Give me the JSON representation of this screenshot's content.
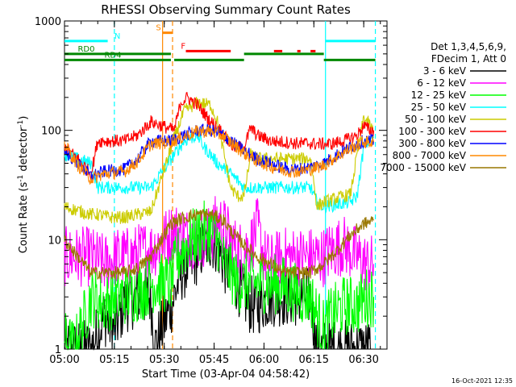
{
  "chart_data": {
    "type": "line",
    "title": "RHESSI Observing Summary Count Rates",
    "xlabel": "Start Time (03-Apr-04 04:58:42)",
    "ylabel_main": "Count Rate (s",
    "ylabel_sup1": "-1",
    "ylabel_mid": " detector",
    "ylabel_sup2": "-1",
    "ylabel_end": ")",
    "yscale": "log",
    "ylim": [
      1,
      1000
    ],
    "xlim_minutes": [
      0,
      97
    ],
    "xticks": [
      {
        "t": 0,
        "label": "05:00"
      },
      {
        "t": 15,
        "label": "05:15"
      },
      {
        "t": 30,
        "label": "05:30"
      },
      {
        "t": 45,
        "label": "05:45"
      },
      {
        "t": 60,
        "label": "06:00"
      },
      {
        "t": 75,
        "label": "06:15"
      },
      {
        "t": 90,
        "label": "06:30"
      }
    ],
    "yticks": [
      {
        "v": 1,
        "label": "1"
      },
      {
        "v": 10,
        "label": "10"
      },
      {
        "v": 100,
        "label": "100"
      },
      {
        "v": 1000,
        "label": "1000"
      }
    ],
    "legend": {
      "header": [
        "Det 1,3,4,5,6,9,",
        "FDecim 1, Att 0"
      ],
      "placement": "right"
    },
    "series": [
      {
        "name": "3 - 6 keV",
        "color": "#000000",
        "points": [
          [
            0,
            1
          ],
          [
            8,
            1
          ],
          [
            12,
            2
          ],
          [
            15,
            1.5
          ],
          [
            18,
            2.6
          ],
          [
            22,
            3
          ],
          [
            26,
            3
          ],
          [
            27,
            1
          ],
          [
            33,
            3
          ],
          [
            35,
            5
          ],
          [
            38,
            6
          ],
          [
            41,
            8
          ],
          [
            44,
            10
          ],
          [
            46,
            9
          ],
          [
            48,
            6
          ],
          [
            50,
            5
          ],
          [
            52,
            4
          ],
          [
            54,
            3
          ],
          [
            56,
            2.5
          ],
          [
            58,
            2.5
          ],
          [
            62,
            3
          ],
          [
            66,
            3
          ],
          [
            70,
            3
          ],
          [
            74,
            3
          ],
          [
            76,
            1
          ],
          [
            80,
            1
          ],
          [
            85,
            1
          ],
          [
            90,
            1
          ],
          [
            92,
            1
          ]
        ]
      },
      {
        "name": "6 - 12 keV",
        "color": "#ff00ff",
        "points": [
          [
            0,
            7
          ],
          [
            8,
            7
          ],
          [
            12,
            6
          ],
          [
            16,
            7
          ],
          [
            20,
            7
          ],
          [
            24,
            8
          ],
          [
            26,
            8
          ],
          [
            33,
            12
          ],
          [
            36,
            11
          ],
          [
            40,
            10
          ],
          [
            44,
            11
          ],
          [
            46,
            15
          ],
          [
            48,
            13
          ],
          [
            50,
            10
          ],
          [
            52,
            8
          ],
          [
            54,
            8
          ],
          [
            56,
            9
          ],
          [
            58,
            13
          ],
          [
            60,
            7
          ],
          [
            62,
            6
          ],
          [
            66,
            7
          ],
          [
            70,
            7
          ],
          [
            74,
            7
          ],
          [
            76,
            7
          ],
          [
            78,
            7
          ],
          [
            80,
            8
          ],
          [
            84,
            9
          ],
          [
            88,
            7
          ],
          [
            91,
            6
          ],
          [
            93,
            6
          ]
        ]
      },
      {
        "name": "12 - 25 keV",
        "color": "#00ff00",
        "points": [
          [
            0,
            1.2
          ],
          [
            3,
            1
          ],
          [
            8,
            3
          ],
          [
            12,
            2.6
          ],
          [
            16,
            3
          ],
          [
            20,
            3.2
          ],
          [
            24,
            3.5
          ],
          [
            26,
            4
          ],
          [
            32,
            4
          ],
          [
            34,
            7
          ],
          [
            38,
            10
          ],
          [
            42,
            12
          ],
          [
            44,
            12
          ],
          [
            46,
            10
          ],
          [
            48,
            6
          ],
          [
            50,
            5
          ],
          [
            52,
            4
          ],
          [
            54,
            4
          ],
          [
            58,
            4
          ],
          [
            62,
            4
          ],
          [
            66,
            3.8
          ],
          [
            70,
            3.2
          ],
          [
            74,
            3
          ],
          [
            76,
            2
          ],
          [
            78,
            1.5
          ],
          [
            80,
            2
          ],
          [
            84,
            2.5
          ],
          [
            88,
            2.5
          ],
          [
            91,
            3
          ],
          [
            93,
            3
          ]
        ]
      },
      {
        "name": "25 - 50 keV",
        "color": "#00ffff",
        "points": [
          [
            0,
            60
          ],
          [
            8,
            50
          ],
          [
            10,
            30
          ],
          [
            14,
            30
          ],
          [
            18,
            30
          ],
          [
            22,
            30
          ],
          [
            26,
            30
          ],
          [
            33,
            60
          ],
          [
            36,
            80
          ],
          [
            40,
            90
          ],
          [
            42,
            70
          ],
          [
            44,
            60
          ],
          [
            46,
            50
          ],
          [
            48,
            45
          ],
          [
            50,
            40
          ],
          [
            52,
            35
          ],
          [
            54,
            30
          ],
          [
            58,
            30
          ],
          [
            62,
            30
          ],
          [
            66,
            30
          ],
          [
            70,
            30
          ],
          [
            74,
            30
          ],
          [
            76,
            22
          ],
          [
            78,
            20
          ],
          [
            82,
            21
          ],
          [
            86,
            22
          ],
          [
            88,
            25
          ],
          [
            90,
            70
          ],
          [
            92,
            85
          ],
          [
            93,
            85
          ]
        ]
      },
      {
        "name": "50 - 100 keV",
        "color": "#cccc00",
        "points": [
          [
            0,
            20
          ],
          [
            8,
            17
          ],
          [
            10,
            17
          ],
          [
            14,
            16
          ],
          [
            18,
            16
          ],
          [
            22,
            17
          ],
          [
            26,
            18
          ],
          [
            33,
            85
          ],
          [
            36,
            150
          ],
          [
            40,
            180
          ],
          [
            44,
            170
          ],
          [
            46,
            120
          ],
          [
            48,
            60
          ],
          [
            50,
            30
          ],
          [
            52,
            25
          ],
          [
            54,
            25
          ],
          [
            56,
            60
          ],
          [
            58,
            55
          ],
          [
            62,
            55
          ],
          [
            66,
            55
          ],
          [
            70,
            55
          ],
          [
            74,
            55
          ],
          [
            76,
            20
          ],
          [
            78,
            22
          ],
          [
            82,
            24
          ],
          [
            86,
            26
          ],
          [
            88,
            60
          ],
          [
            90,
            130
          ],
          [
            92,
            110
          ],
          [
            93,
            95
          ]
        ]
      },
      {
        "name": "100 - 300 keV",
        "color": "#ff0000",
        "points": [
          [
            0,
            70
          ],
          [
            4,
            55
          ],
          [
            8,
            40
          ],
          [
            10,
            80
          ],
          [
            14,
            80
          ],
          [
            18,
            80
          ],
          [
            22,
            90
          ],
          [
            26,
            120
          ],
          [
            33,
            100
          ],
          [
            35,
            180
          ],
          [
            37,
            200
          ],
          [
            40,
            170
          ],
          [
            44,
            120
          ],
          [
            47,
            100
          ],
          [
            49,
            80
          ],
          [
            51,
            70
          ],
          [
            54,
            70
          ],
          [
            56,
            105
          ],
          [
            58,
            90
          ],
          [
            62,
            80
          ],
          [
            66,
            78
          ],
          [
            70,
            76
          ],
          [
            74,
            76
          ],
          [
            76,
            75
          ],
          [
            80,
            75
          ],
          [
            84,
            80
          ],
          [
            88,
            90
          ],
          [
            90,
            110
          ],
          [
            92,
            100
          ],
          [
            93,
            100
          ]
        ]
      },
      {
        "name": "300 - 800 keV",
        "color": "#0000ff",
        "points": [
          [
            0,
            65
          ],
          [
            4,
            50
          ],
          [
            8,
            38
          ],
          [
            12,
            42
          ],
          [
            18,
            44
          ],
          [
            22,
            55
          ],
          [
            26,
            80
          ],
          [
            32,
            80
          ],
          [
            36,
            90
          ],
          [
            40,
            100
          ],
          [
            44,
            100
          ],
          [
            48,
            90
          ],
          [
            50,
            80
          ],
          [
            54,
            65
          ],
          [
            58,
            55
          ],
          [
            62,
            50
          ],
          [
            66,
            45
          ],
          [
            70,
            44
          ],
          [
            74,
            46
          ],
          [
            78,
            50
          ],
          [
            82,
            60
          ],
          [
            86,
            70
          ],
          [
            90,
            80
          ],
          [
            93,
            80
          ]
        ]
      },
      {
        "name": "800 - 7000 keV",
        "color": "#ff8800",
        "points": [
          [
            0,
            75
          ],
          [
            4,
            48
          ],
          [
            8,
            36
          ],
          [
            12,
            40
          ],
          [
            18,
            42
          ],
          [
            22,
            52
          ],
          [
            26,
            75
          ],
          [
            32,
            78
          ],
          [
            36,
            88
          ],
          [
            40,
            98
          ],
          [
            44,
            98
          ],
          [
            48,
            88
          ],
          [
            50,
            78
          ],
          [
            54,
            62
          ],
          [
            58,
            52
          ],
          [
            62,
            47
          ],
          [
            66,
            43
          ],
          [
            70,
            42
          ],
          [
            74,
            44
          ],
          [
            78,
            48
          ],
          [
            82,
            58
          ],
          [
            86,
            68
          ],
          [
            90,
            78
          ],
          [
            93,
            78
          ]
        ]
      },
      {
        "name": "7000 - 15000 keV",
        "color": "#997700",
        "points": [
          [
            0,
            10
          ],
          [
            4,
            7
          ],
          [
            8,
            5
          ],
          [
            12,
            5
          ],
          [
            18,
            5
          ],
          [
            22,
            5.5
          ],
          [
            26,
            7
          ],
          [
            32,
            14
          ],
          [
            36,
            16
          ],
          [
            40,
            17
          ],
          [
            44,
            17
          ],
          [
            48,
            15
          ],
          [
            50,
            12
          ],
          [
            54,
            9
          ],
          [
            58,
            7
          ],
          [
            62,
            6
          ],
          [
            66,
            5
          ],
          [
            70,
            5
          ],
          [
            74,
            5
          ],
          [
            78,
            6
          ],
          [
            82,
            8
          ],
          [
            86,
            11
          ],
          [
            90,
            14
          ],
          [
            93,
            15
          ]
        ]
      }
    ],
    "flag_lines": [
      {
        "label": "N",
        "color": "#00ffff",
        "y": 655,
        "label_t": 15,
        "segments": [
          [
            0,
            13
          ],
          [
            78.5,
            93.5
          ]
        ]
      },
      {
        "label": "S",
        "color": "#ff8800",
        "y": 780,
        "label_t": 27.5,
        "segments": [
          [
            29.5,
            32.5
          ]
        ]
      },
      {
        "label": "F",
        "color": "#ff0000",
        "y": 530,
        "label_t": 35,
        "segments": [
          [
            36.5,
            50
          ],
          [
            63,
            65.5
          ],
          [
            70,
            71
          ],
          [
            74,
            75.5
          ]
        ]
      },
      {
        "label": "RD0",
        "color": "#008800",
        "y": 500,
        "label_t": 4,
        "segments": [
          [
            0,
            32
          ],
          [
            54,
            78
          ]
        ]
      },
      {
        "label": "RD4",
        "color": "#008800",
        "y": 440,
        "label_t": 12,
        "segments": [
          [
            0,
            32
          ],
          [
            33,
            54
          ],
          [
            78,
            93.5
          ]
        ]
      }
    ],
    "vlines": [
      {
        "t": 15,
        "color": "#00ffff",
        "style": "dashed"
      },
      {
        "t": 29.5,
        "color": "#ff8800",
        "style": "solid"
      },
      {
        "t": 32.5,
        "color": "#ff8800",
        "style": "dashed"
      },
      {
        "t": 78.5,
        "color": "#00ffff",
        "style": "solid"
      },
      {
        "t": 93.5,
        "color": "#00ffff",
        "style": "dashed"
      }
    ],
    "timestamp": "16-Oct-2021 12:35"
  }
}
